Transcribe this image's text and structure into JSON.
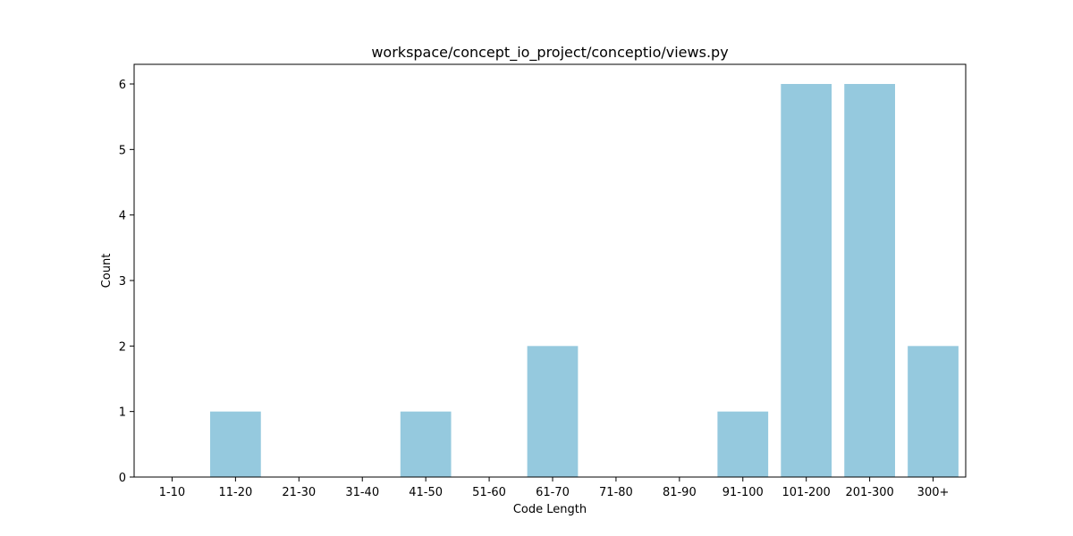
{
  "chart_data": {
    "type": "bar",
    "title": "workspace/concept_io_project/conceptio/views.py",
    "xlabel": "Code Length",
    "ylabel": "Count",
    "categories": [
      "1-10",
      "11-20",
      "21-30",
      "31-40",
      "41-50",
      "51-60",
      "61-70",
      "71-80",
      "81-90",
      "91-100",
      "101-200",
      "201-300",
      "300+"
    ],
    "values": [
      0,
      1,
      0,
      0,
      1,
      0,
      2,
      0,
      0,
      1,
      6,
      6,
      2
    ],
    "ylim": [
      0,
      6.3
    ],
    "yticks": [
      0,
      1,
      2,
      3,
      4,
      5,
      6
    ],
    "grid": false,
    "legend": "none",
    "bar_color": "#95c9de"
  }
}
